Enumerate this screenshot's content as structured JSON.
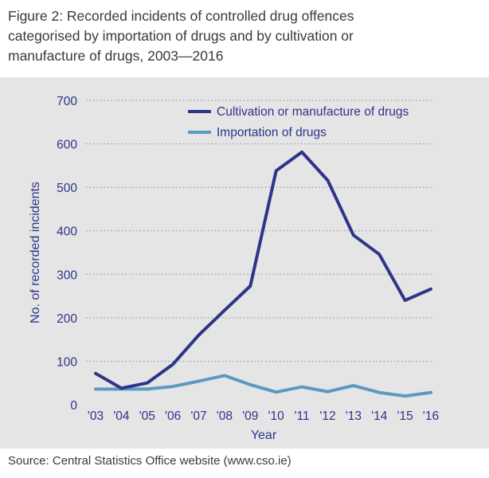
{
  "figure": {
    "title": "Figure 2: Recorded incidents of controlled drug offences\ncategorised by importation of drugs and by cultivation or\nmanufacture of drugs, 2003—2016",
    "source": "Source: Central Statistics Office website (www.cso.ie)"
  },
  "chart_data": {
    "type": "line",
    "xlabel": "Year",
    "ylabel": "No. of recorded incidents",
    "categories": [
      "'03",
      "'04",
      "'05",
      "'06",
      "'07",
      "'08",
      "'09",
      "'10",
      "'11",
      "'12",
      "'13",
      "'14",
      "'15",
      "'16"
    ],
    "yticks": [
      0,
      100,
      200,
      300,
      400,
      500,
      600,
      700
    ],
    "ylim": [
      0,
      700
    ],
    "grid": true,
    "legend_position": "top-right",
    "series": [
      {
        "name": "Cultivation or manufacture of drugs",
        "color": "#2e348a",
        "values": [
          72,
          38,
          50,
          93,
          160,
          217,
          273,
          538,
          581,
          516,
          390,
          346,
          240,
          266
        ]
      },
      {
        "name": "Importation of drugs",
        "color": "#5b9abf",
        "values": [
          36,
          36,
          36,
          42,
          54,
          67,
          46,
          29,
          41,
          30,
          44,
          28,
          20,
          28
        ]
      }
    ]
  }
}
